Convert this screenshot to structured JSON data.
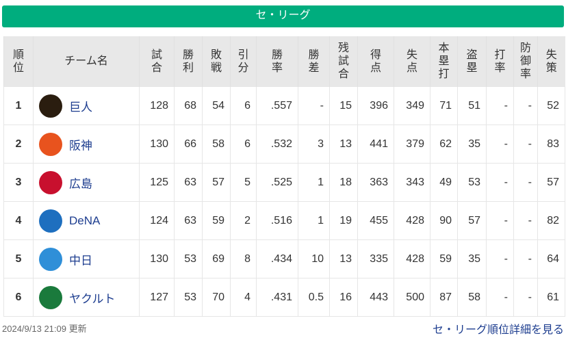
{
  "banner": "セ・リーグ",
  "headers": [
    "順位",
    "チーム名",
    "試合",
    "勝利",
    "敗戦",
    "引分",
    "勝率",
    "勝差",
    "残試合",
    "得点",
    "失点",
    "本塁打",
    "盗塁",
    "打率",
    "防御率",
    "失策"
  ],
  "rows": [
    {
      "rank": "1",
      "team": "巨人",
      "logo": "giants-logo",
      "logo_color": "#2a1d0f",
      "stats": [
        "128",
        "68",
        "54",
        "6",
        ".557",
        "-",
        "15",
        "396",
        "349",
        "71",
        "51",
        "-",
        "-",
        "52"
      ]
    },
    {
      "rank": "2",
      "team": "阪神",
      "logo": "tigers-logo",
      "logo_color": "#e8531e",
      "stats": [
        "130",
        "66",
        "58",
        "6",
        ".532",
        "3",
        "13",
        "441",
        "379",
        "62",
        "35",
        "-",
        "-",
        "83"
      ]
    },
    {
      "rank": "3",
      "team": "広島",
      "logo": "carp-logo",
      "logo_color": "#c8102e",
      "stats": [
        "125",
        "63",
        "57",
        "5",
        ".525",
        "1",
        "18",
        "363",
        "343",
        "49",
        "53",
        "-",
        "-",
        "57"
      ]
    },
    {
      "rank": "4",
      "team": "DeNA",
      "logo": "baystars-logo",
      "logo_color": "#1e6fbf",
      "stats": [
        "124",
        "63",
        "59",
        "2",
        ".516",
        "1",
        "19",
        "455",
        "428",
        "90",
        "57",
        "-",
        "-",
        "82"
      ]
    },
    {
      "rank": "5",
      "team": "中日",
      "logo": "dragons-logo",
      "logo_color": "#2f8fd8",
      "stats": [
        "130",
        "53",
        "69",
        "8",
        ".434",
        "10",
        "13",
        "335",
        "428",
        "59",
        "35",
        "-",
        "-",
        "64"
      ]
    },
    {
      "rank": "6",
      "team": "ヤクルト",
      "logo": "swallows-logo",
      "logo_color": "#1a7a3c",
      "stats": [
        "127",
        "53",
        "70",
        "4",
        ".431",
        "0.5",
        "16",
        "443",
        "500",
        "87",
        "58",
        "-",
        "-",
        "61"
      ]
    }
  ],
  "footer": {
    "updated": "2024/9/13 21:09 更新",
    "more_link": "セ・リーグ順位詳細を見る"
  }
}
